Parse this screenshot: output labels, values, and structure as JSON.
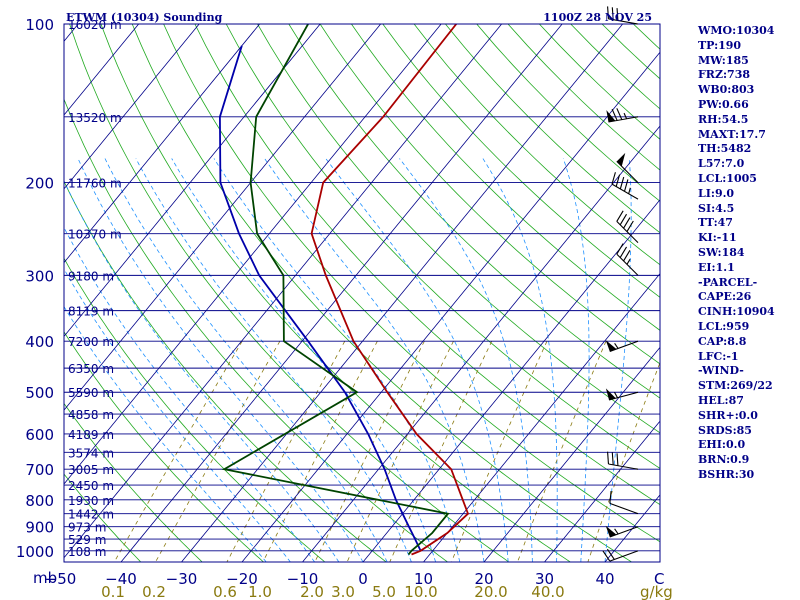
{
  "chart_data": {
    "type": "skew-t",
    "title_left": "ETWM (10304) Sounding",
    "title_right": "1100Z 28 NOV 25",
    "pressure_axis_unit": "mb",
    "pressure_ticks": [
      100,
      200,
      300,
      400,
      500,
      600,
      700,
      800,
      900,
      1000
    ],
    "temperature_axis_unit": "C",
    "temperature_ticks": [
      -50,
      -40,
      -30,
      -20,
      -10,
      0,
      10,
      20,
      30,
      40
    ],
    "temperature_tick_labels": [
      "−50",
      "−40",
      "−30",
      "−20",
      "−10",
      "0",
      "10",
      "20",
      "30",
      "40"
    ],
    "mixing_ratio_unit": "g/kg",
    "mixing_ratio_labels": [
      "0.1",
      "0.2",
      "0.6",
      "1.0",
      "2.0",
      "3.0",
      "5.0",
      "10.0",
      "20.0",
      "40.0"
    ],
    "height_levels": [
      {
        "p": 100,
        "label": "16020 m"
      },
      {
        "p": 150,
        "label": "13520 m"
      },
      {
        "p": 200,
        "label": "11760 m"
      },
      {
        "p": 250,
        "label": "10370 m"
      },
      {
        "p": 300,
        "label": "9180 m"
      },
      {
        "p": 350,
        "label": "8119 m"
      },
      {
        "p": 400,
        "label": "7200 m"
      },
      {
        "p": 450,
        "label": "6350 m"
      },
      {
        "p": 500,
        "label": "5590 m"
      },
      {
        "p": 550,
        "label": "4858 m"
      },
      {
        "p": 600,
        "label": "4189 m"
      },
      {
        "p": 650,
        "label": "3574 m"
      },
      {
        "p": 700,
        "label": "3005 m"
      },
      {
        "p": 750,
        "label": "2450 m"
      },
      {
        "p": 800,
        "label": "1930 m"
      },
      {
        "p": 850,
        "label": "1442 m"
      },
      {
        "p": 900,
        "label": "973 m"
      },
      {
        "p": 950,
        "label": "529 m"
      },
      {
        "p": 1000,
        "label": "108 m"
      }
    ],
    "temperature_profile": [
      {
        "p": 1016,
        "t": 7.0
      },
      {
        "p": 1000,
        "t": 8.0
      },
      {
        "p": 925,
        "t": 10.0
      },
      {
        "p": 850,
        "t": 10.8
      },
      {
        "p": 700,
        "t": 2.0
      },
      {
        "p": 600,
        "t": -8.5
      },
      {
        "p": 500,
        "t": -19.0
      },
      {
        "p": 400,
        "t": -31.5
      },
      {
        "p": 300,
        "t": -45.0
      },
      {
        "p": 250,
        "t": -53.0
      },
      {
        "p": 200,
        "t": -58.0
      },
      {
        "p": 150,
        "t": -57.0
      },
      {
        "p": 100,
        "t": -57.5
      }
    ],
    "dewpoint_profile": [
      {
        "p": 1016,
        "t": 6.5
      },
      {
        "p": 1000,
        "t": 6.5
      },
      {
        "p": 925,
        "t": 7.5
      },
      {
        "p": 850,
        "t": 7.5
      },
      {
        "p": 700,
        "t": -35.5
      },
      {
        "p": 500,
        "t": -24.0
      },
      {
        "p": 400,
        "t": -43.0
      },
      {
        "p": 300,
        "t": -52.0
      },
      {
        "p": 250,
        "t": -62.0
      },
      {
        "p": 200,
        "t": -70.0
      },
      {
        "p": 150,
        "t": -78.0
      },
      {
        "p": 100,
        "t": -82.0
      }
    ],
    "parcel_profile": [
      {
        "p": 1000,
        "t": 8.0
      },
      {
        "p": 950,
        "t": 5.5
      },
      {
        "p": 900,
        "t": 2.8
      },
      {
        "p": 850,
        "t": 0.0
      },
      {
        "p": 800,
        "t": -3.0
      },
      {
        "p": 700,
        "t": -9.0
      },
      {
        "p": 600,
        "t": -16.5
      },
      {
        "p": 500,
        "t": -26.0
      },
      {
        "p": 400,
        "t": -39.0
      },
      {
        "p": 300,
        "t": -56.0
      },
      {
        "p": 250,
        "t": -65.0
      },
      {
        "p": 200,
        "t": -75.0
      },
      {
        "p": 150,
        "t": -84.0
      },
      {
        "p": 110,
        "t": -90.0
      }
    ],
    "wind_barbs": [
      {
        "p": 100,
        "dir": 280,
        "spd": 30
      },
      {
        "p": 150,
        "dir": 260,
        "spd": 75
      },
      {
        "p": 200,
        "dir": 315,
        "spd": 50
      },
      {
        "p": 215,
        "dir": 300,
        "spd": 45
      },
      {
        "p": 260,
        "dir": 315,
        "spd": 40
      },
      {
        "p": 300,
        "dir": 315,
        "spd": 35
      },
      {
        "p": 400,
        "dir": 250,
        "spd": 55
      },
      {
        "p": 500,
        "dir": 255,
        "spd": 55
      },
      {
        "p": 700,
        "dir": 280,
        "spd": 30
      },
      {
        "p": 850,
        "dir": 290,
        "spd": 10
      },
      {
        "p": 900,
        "dir": 250,
        "spd": 55
      },
      {
        "p": 1000,
        "dir": 250,
        "spd": 20
      }
    ],
    "ylim": [
      1050,
      100
    ],
    "xlim": [
      -50,
      50
    ],
    "series_colors": {
      "temperature": "#aa0000",
      "dewpoint": "#004400",
      "parcel": "#0000aa",
      "isobar": "#000088",
      "isotherm": "#000088",
      "dry_adiabat": "#22aa22",
      "moist_adiabat": "#1e90ff",
      "mixing_ratio": "#8a7a10"
    }
  },
  "indices": [
    "WMO:10304",
    "TP:190",
    "MW:185",
    "FRZ:738",
    "WB0:803",
    "PW:0.66",
    "RH:54.5",
    "MAXT:17.7",
    "TH:5482",
    "L57:7.0",
    "LCL:1005",
    "LI:9.0",
    "SI:4.5",
    "TT:47",
    "KI:-11",
    "SW:184",
    "EI:1.1",
    "-PARCEL-",
    "CAPE:26",
    "CINH:10904",
    "LCL:959",
    "CAP:8.8",
    "LFC:-1",
    "-WIND-",
    "STM:269/22",
    "HEL:87",
    "SHR+:0.0",
    "SRDS:85",
    "EHI:0.0",
    "BRN:0.9",
    "BSHR:30"
  ]
}
